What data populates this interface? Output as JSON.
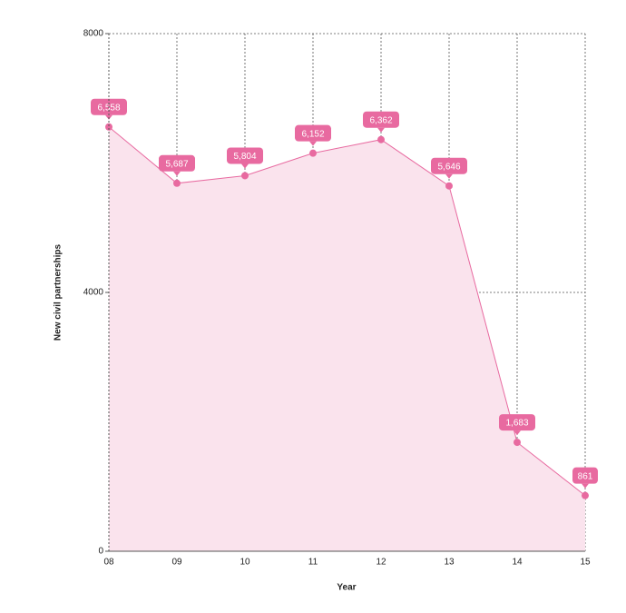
{
  "chart_data": {
    "type": "area",
    "x_label": "Year",
    "y_label": "New civil partnerships",
    "categories": [
      "08",
      "09",
      "10",
      "11",
      "12",
      "13",
      "14",
      "15"
    ],
    "values": [
      6558,
      5687,
      5804,
      6152,
      6362,
      5646,
      1683,
      861
    ],
    "value_labels": [
      "6,558",
      "5,687",
      "5,804",
      "6,152",
      "6,362",
      "5,646",
      "1,683",
      "861"
    ],
    "color": "#e86aa0",
    "fill_color": "#fae3ed",
    "ylim": [
      0,
      8000
    ],
    "yticks": [
      0,
      4000,
      8000
    ],
    "grid": true
  }
}
